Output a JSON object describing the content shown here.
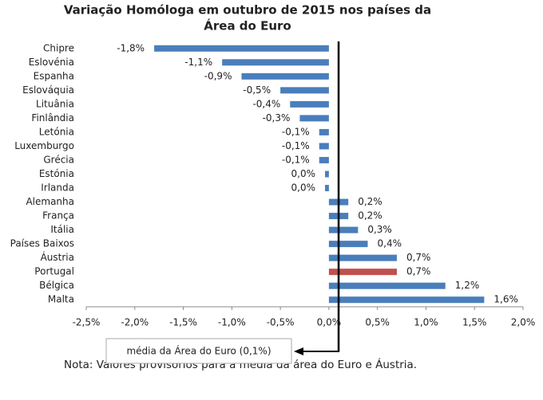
{
  "chart_data": {
    "type": "hbar",
    "title": [
      "Variação Homóloga em outubro de 2015 nos países da",
      "Área do Euro"
    ],
    "categories": [
      "Chipre",
      "Eslovénia",
      "Espanha",
      "Eslováquia",
      "Lituânia",
      "Finlândia",
      "Letónia",
      "Luxemburgo",
      "Grécia",
      "Estónia",
      "Irlanda",
      "Alemanha",
      "França",
      "Itália",
      "Países Baixos",
      "Áustria",
      "Portugal",
      "Bélgica",
      "Malta"
    ],
    "values": [
      -1.8,
      -1.1,
      -0.9,
      -0.5,
      -0.4,
      -0.3,
      -0.1,
      -0.1,
      -0.1,
      -0.04,
      -0.04,
      0.2,
      0.2,
      0.3,
      0.4,
      0.7,
      0.7,
      1.2,
      1.6
    ],
    "value_labels": [
      "-1,8%",
      "-1,1%",
      "-0,9%",
      "-0,5%",
      "-0,4%",
      "-0,3%",
      "-0,1%",
      "-0,1%",
      "-0,1%",
      "0,0%",
      "0,0%",
      "0,2%",
      "0,2%",
      "0,3%",
      "0,4%",
      "0,7%",
      "0,7%",
      "1,2%",
      "1,6%"
    ],
    "colors": [
      "#4a7ebb",
      "#4a7ebb",
      "#4a7ebb",
      "#4a7ebb",
      "#4a7ebb",
      "#4a7ebb",
      "#4a7ebb",
      "#4a7ebb",
      "#4a7ebb",
      "#4a7ebb",
      "#4a7ebb",
      "#4a7ebb",
      "#4a7ebb",
      "#4a7ebb",
      "#4a7ebb",
      "#4a7ebb",
      "#c0504d",
      "#4a7ebb",
      "#4a7ebb"
    ],
    "xlim": [
      -2.5,
      2.0
    ],
    "xticks": [
      {
        "value": -2.5,
        "label": "-2,5%"
      },
      {
        "value": -2.0,
        "label": "-2,0%"
      },
      {
        "value": -1.5,
        "label": "-1,5%"
      },
      {
        "value": -1.0,
        "label": "-1,0%"
      },
      {
        "value": -0.5,
        "label": "-0,5%"
      },
      {
        "value": 0.0,
        "label": "0,0%"
      },
      {
        "value": 0.5,
        "label": "0,5%"
      },
      {
        "value": 1.0,
        "label": "1,0%"
      },
      {
        "value": 1.5,
        "label": "1,5%"
      },
      {
        "value": 2.0,
        "label": "2,0%"
      }
    ],
    "reference": {
      "value": 0.1,
      "label": "média da Área do Euro (0,1%)"
    },
    "note": "Nota: Valores provisórios para a média da área do Euro e Áustria."
  }
}
